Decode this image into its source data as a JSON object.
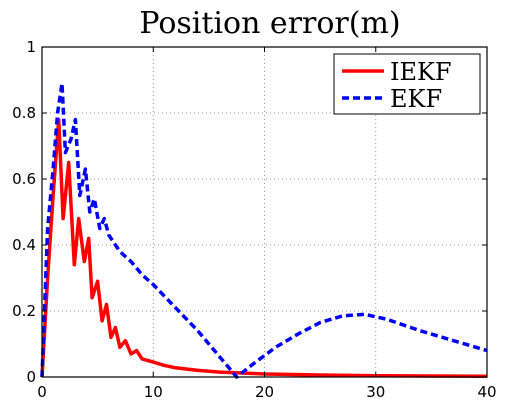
{
  "chart_data": {
    "type": "line",
    "title": "Position error(m)",
    "xlabel": "",
    "ylabel": "",
    "xlim": [
      0,
      40
    ],
    "ylim": [
      0,
      1
    ],
    "x_ticks": [
      0,
      10,
      20,
      30,
      40
    ],
    "y_ticks": [
      0,
      0.2,
      0.4,
      0.6,
      0.8,
      1
    ],
    "x_tick_labels": [
      "0",
      "10",
      "20",
      "30",
      "40"
    ],
    "y_tick_labels": [
      "0",
      "0.2",
      "0.4",
      "0.6",
      "0.8",
      "1"
    ],
    "grid": true,
    "legend_position": "top-right",
    "series": [
      {
        "name": "IEKF",
        "color": "#ff0000",
        "style": "solid",
        "points": [
          [
            0,
            0
          ],
          [
            0.5,
            0.3
          ],
          [
            1.0,
            0.55
          ],
          [
            1.5,
            0.78
          ],
          [
            1.9,
            0.48
          ],
          [
            2.4,
            0.65
          ],
          [
            2.9,
            0.34
          ],
          [
            3.3,
            0.48
          ],
          [
            3.8,
            0.35
          ],
          [
            4.2,
            0.42
          ],
          [
            4.5,
            0.24
          ],
          [
            5.0,
            0.29
          ],
          [
            5.4,
            0.17
          ],
          [
            5.8,
            0.22
          ],
          [
            6.2,
            0.12
          ],
          [
            6.6,
            0.15
          ],
          [
            7.0,
            0.09
          ],
          [
            7.5,
            0.11
          ],
          [
            8.0,
            0.07
          ],
          [
            8.5,
            0.08
          ],
          [
            9.0,
            0.055
          ],
          [
            10,
            0.045
          ],
          [
            11,
            0.035
          ],
          [
            12,
            0.028
          ],
          [
            14,
            0.02
          ],
          [
            16,
            0.015
          ],
          [
            18,
            0.012
          ],
          [
            20,
            0.009
          ],
          [
            25,
            0.006
          ],
          [
            30,
            0.004
          ],
          [
            35,
            0.003
          ],
          [
            40,
            0.002
          ]
        ]
      },
      {
        "name": "EKF",
        "color": "#0000ff",
        "style": "dashed",
        "points": [
          [
            0,
            0
          ],
          [
            0.5,
            0.45
          ],
          [
            1.0,
            0.63
          ],
          [
            1.4,
            0.8
          ],
          [
            1.8,
            0.89
          ],
          [
            2.1,
            0.68
          ],
          [
            2.6,
            0.72
          ],
          [
            3.0,
            0.78
          ],
          [
            3.4,
            0.55
          ],
          [
            3.9,
            0.63
          ],
          [
            4.3,
            0.5
          ],
          [
            4.7,
            0.54
          ],
          [
            5.2,
            0.45
          ],
          [
            5.6,
            0.48
          ],
          [
            6.0,
            0.43
          ],
          [
            7,
            0.38
          ],
          [
            8,
            0.35
          ],
          [
            9,
            0.31
          ],
          [
            10,
            0.28
          ],
          [
            12,
            0.21
          ],
          [
            14,
            0.14
          ],
          [
            16,
            0.06
          ],
          [
            17.5,
            0.0
          ],
          [
            19,
            0.04
          ],
          [
            21,
            0.09
          ],
          [
            23,
            0.13
          ],
          [
            25,
            0.165
          ],
          [
            27,
            0.185
          ],
          [
            29,
            0.19
          ],
          [
            31,
            0.175
          ],
          [
            34,
            0.14
          ],
          [
            37,
            0.11
          ],
          [
            40,
            0.08
          ]
        ]
      }
    ]
  }
}
